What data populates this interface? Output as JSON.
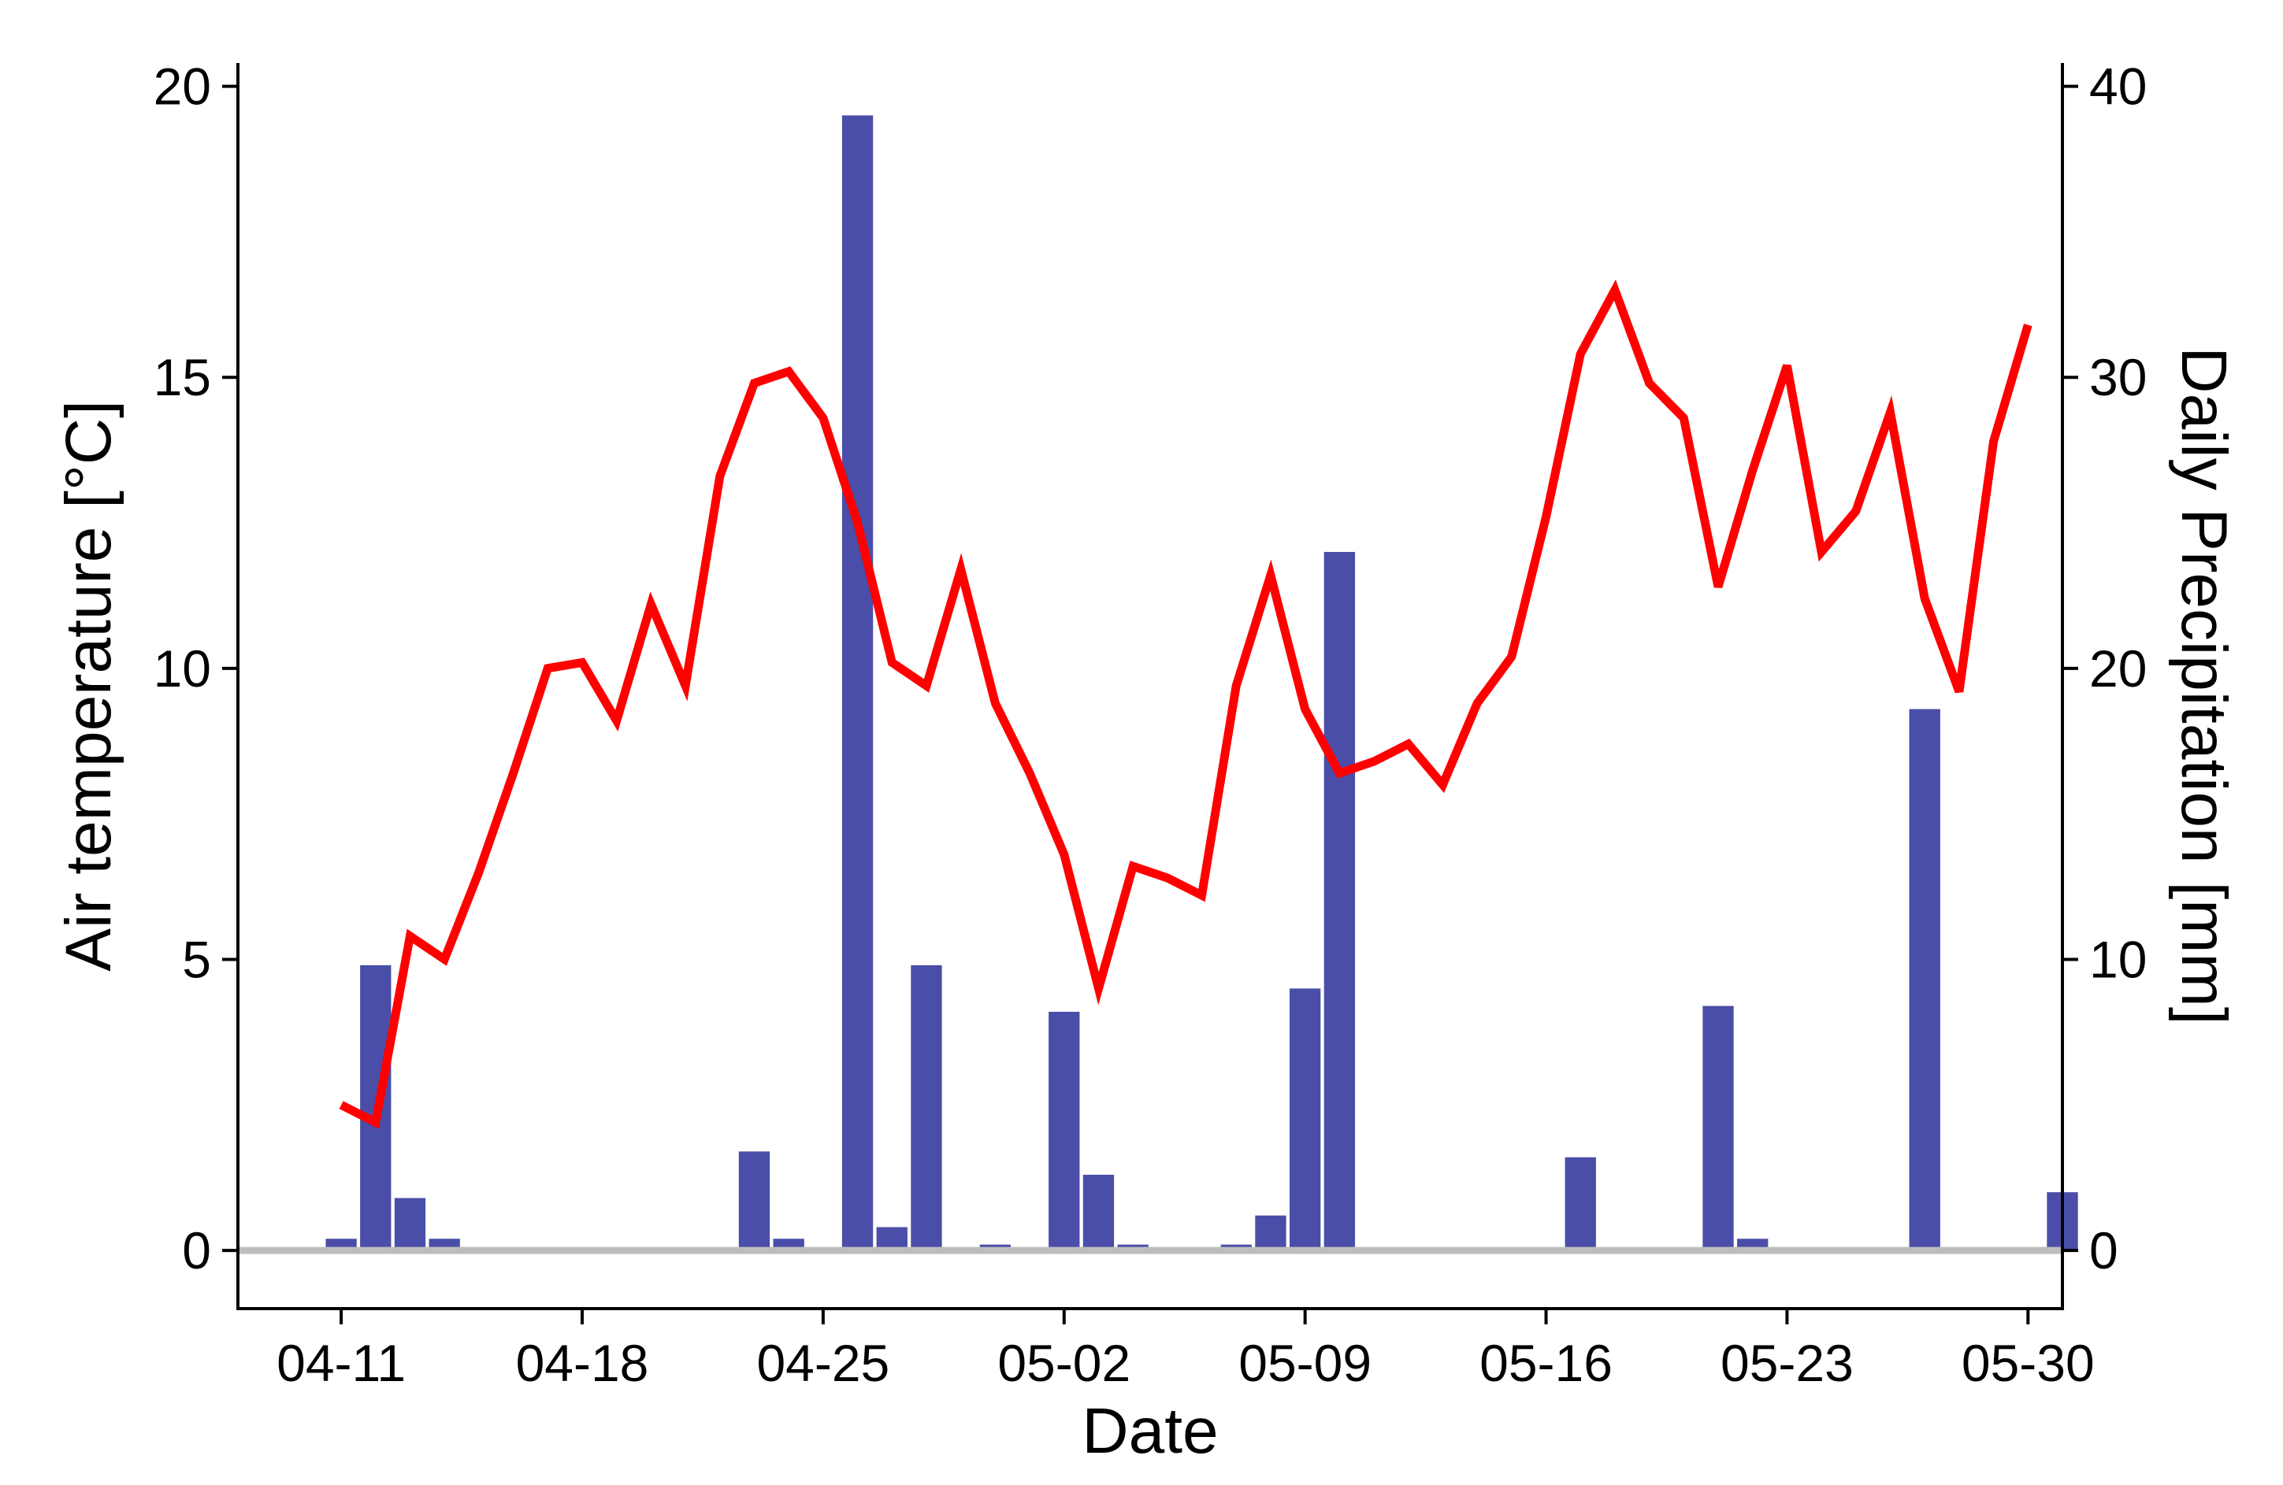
{
  "chart_data": {
    "type": "bar+line",
    "xlabel": "Date",
    "ylabel_left": "Air temperature [°C]",
    "ylabel_right": "Daily Precipitation [mm]",
    "x_ticks": [
      "04-11",
      "04-18",
      "04-25",
      "05-02",
      "05-09",
      "05-16",
      "05-23",
      "05-30"
    ],
    "y_left_ticks": [
      "0",
      "5",
      "10",
      "15",
      "20"
    ],
    "y_right_ticks": [
      "0",
      "10",
      "20",
      "30",
      "40"
    ],
    "ylim_left": [
      -1.0,
      20.4
    ],
    "ylim_right": [
      -2.0,
      40.8
    ],
    "xlim": [
      "04-08",
      "05-31"
    ],
    "grid": false,
    "precipitation_series": {
      "name": "Daily Precipitation",
      "color": "#4a4ea8",
      "dates": [
        "04-11",
        "04-12",
        "04-13",
        "04-14",
        "04-23",
        "04-24",
        "04-26",
        "04-27",
        "04-28",
        "04-30",
        "05-02",
        "05-03",
        "05-04",
        "05-07",
        "05-08",
        "05-09",
        "05-10",
        "05-17",
        "05-21",
        "05-22",
        "05-27",
        "05-31"
      ],
      "values": [
        0.4,
        9.8,
        1.8,
        0.4,
        3.4,
        0.4,
        39.0,
        0.8,
        9.8,
        0.2,
        8.2,
        2.6,
        0.2,
        0.2,
        1.2,
        9.0,
        24.0,
        3.2,
        8.4,
        0.4,
        18.6,
        2.0
      ]
    },
    "temperature_series": {
      "name": "Air temperature",
      "color": "#ff0000",
      "dates": [
        "04-11",
        "04-12",
        "04-13",
        "04-14",
        "04-15",
        "04-16",
        "04-17",
        "04-18",
        "04-19",
        "04-20",
        "04-21",
        "04-22",
        "04-23",
        "04-24",
        "04-25",
        "04-26",
        "04-27",
        "04-28",
        "04-29",
        "04-30",
        "05-01",
        "05-02",
        "05-03",
        "05-04",
        "05-05",
        "05-06",
        "05-07",
        "05-08",
        "05-09",
        "05-10",
        "05-11",
        "05-12",
        "05-13",
        "05-14",
        "05-15",
        "05-16",
        "05-17",
        "05-18",
        "05-19",
        "05-20",
        "05-21",
        "05-22",
        "05-23",
        "05-24",
        "05-25",
        "05-26",
        "05-27",
        "05-28",
        "05-29",
        "05-30"
      ],
      "values": [
        2.5,
        2.2,
        5.4,
        5.0,
        6.5,
        8.2,
        10.0,
        10.1,
        9.1,
        11.1,
        9.7,
        13.3,
        14.9,
        15.1,
        14.3,
        12.5,
        10.1,
        9.7,
        11.7,
        9.4,
        8.2,
        6.8,
        4.5,
        6.6,
        6.4,
        6.1,
        9.7,
        11.6,
        9.3,
        8.2,
        8.4,
        8.7,
        8.0,
        9.4,
        10.2,
        12.6,
        15.4,
        16.5,
        14.9,
        14.3,
        11.4,
        13.4,
        15.2,
        12.0,
        12.7,
        14.4,
        11.2,
        9.6,
        13.9,
        15.9
      ]
    },
    "reference_line": {
      "value": 0,
      "color": "#bdbdbd"
    }
  }
}
